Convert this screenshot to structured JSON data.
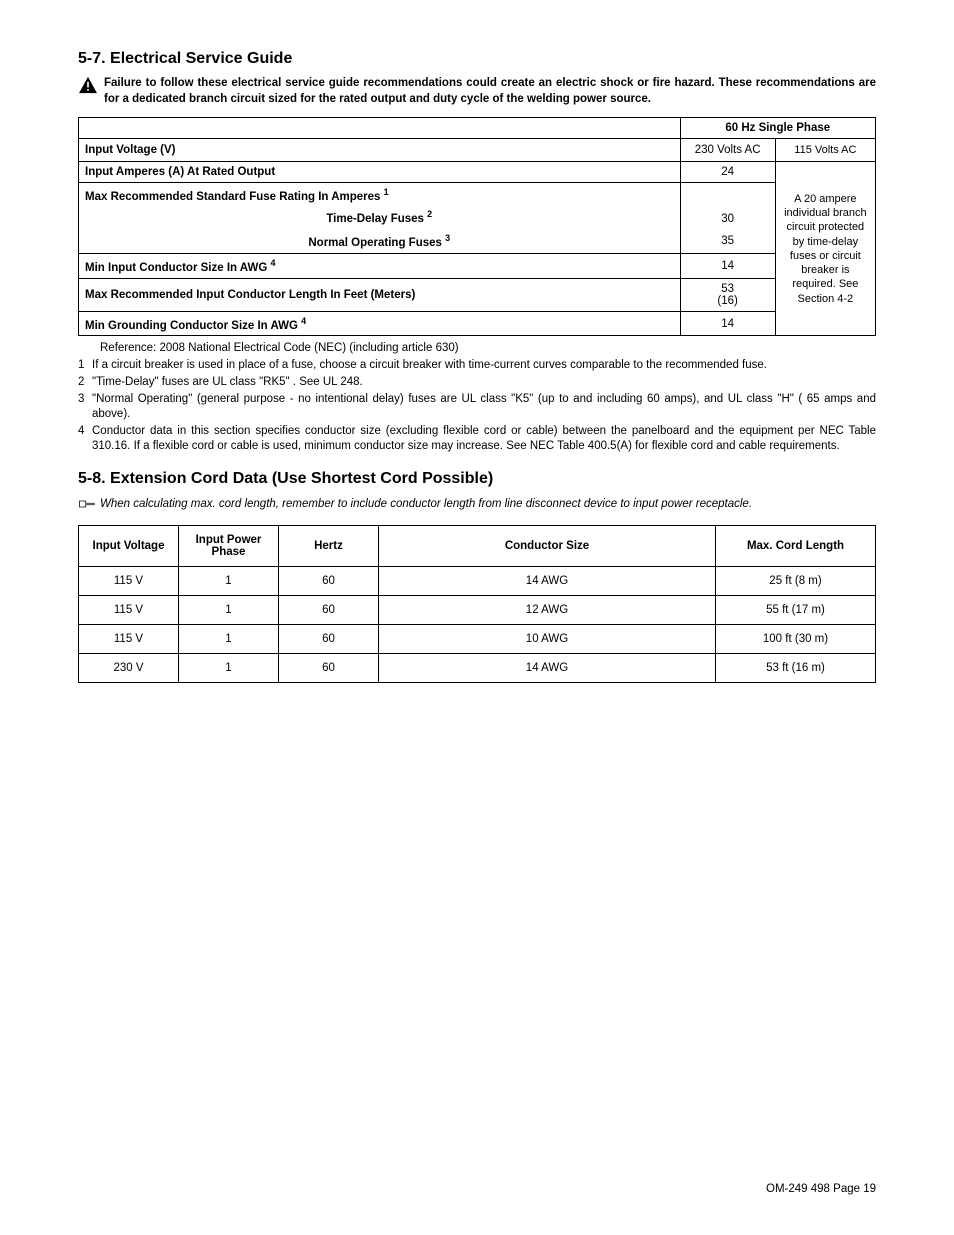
{
  "section57": {
    "title": "5-7.   Electrical Service Guide",
    "warning": "Failure to follow these electrical service guide recommendations could create an electric shock or fire hazard. These recommendations are for a dedicated branch circuit sized for the rated output and duty cycle of the welding power source.",
    "header_span": "60 Hz Single Phase",
    "col230": "230 Volts AC",
    "col115": "115 Volts AC",
    "rows": {
      "input_voltage_label": "Input Voltage (V)",
      "input_amperes_label": "Input Amperes (A) At Rated Output",
      "input_amperes_val": "24",
      "max_fuse_label": "Max Recommended Standard Fuse Rating In Amperes ",
      "time_delay_label": "Time-Delay Fuses ",
      "time_delay_val": "30",
      "normal_op_label": "Normal Operating Fuses ",
      "normal_op_val": "35",
      "min_input_cond_label": "Min Input Conductor Size In AWG ",
      "min_input_cond_val": "14",
      "max_len_label": "Max Recommended Input Conductor Length In Feet (Meters)",
      "max_len_val_top": "53",
      "max_len_val_bot": "(16)",
      "min_ground_label": "Min Grounding Conductor Size In AWG ",
      "min_ground_val": "14",
      "note_text": "A 20 ampere individual branch circuit protected by time-delay fuses or circuit breaker is required. See Section 4-2"
    },
    "reference": "Reference: 2008 National Electrical Code (NEC) (including article 630)",
    "fn1": "If a circuit breaker is used in place of a fuse, choose a circuit breaker with time-current curves comparable to the recommended fuse.",
    "fn2": "\"Time-Delay\" fuses are UL class \"RK5\" . See UL 248.",
    "fn3": "\"Normal Operating\" (general purpose - no intentional delay) fuses are UL class \"K5\" (up to and including 60 amps), and UL class \"H\" ( 65 amps and above).",
    "fn4": "Conductor data in this section specifies conductor size (excluding flexible cord or cable) between the panelboard and the equipment per NEC Table 310.16.  If a flexible cord or cable is used, minimum conductor size may increase. See NEC Table 400.5(A) for flexible cord and cable requirements."
  },
  "section58": {
    "title": "5-8.   Extension Cord Data (Use Shortest Cord Possible)",
    "note": "When calculating max. cord length, remember to include conductor length from line disconnect device to input power receptacle.",
    "headers": {
      "voltage": "Input Voltage",
      "phase": "Input Power Phase",
      "hertz": "Hertz",
      "cond": "Conductor Size",
      "len": "Max. Cord Length"
    },
    "rows": [
      {
        "v": "115 V",
        "p": "1",
        "hz": "60",
        "c": "14 AWG",
        "l": "25 ft (8 m)"
      },
      {
        "v": "115 V",
        "p": "1",
        "hz": "60",
        "c": "12 AWG",
        "l": "55 ft (17 m)"
      },
      {
        "v": "115 V",
        "p": "1",
        "hz": "60",
        "c": "10 AWG",
        "l": "100 ft (30 m)"
      },
      {
        "v": "230 V",
        "p": "1",
        "hz": "60",
        "c": "14 AWG",
        "l": "53 ft (16 m)"
      }
    ]
  },
  "footer": "OM-249 498 Page 19"
}
